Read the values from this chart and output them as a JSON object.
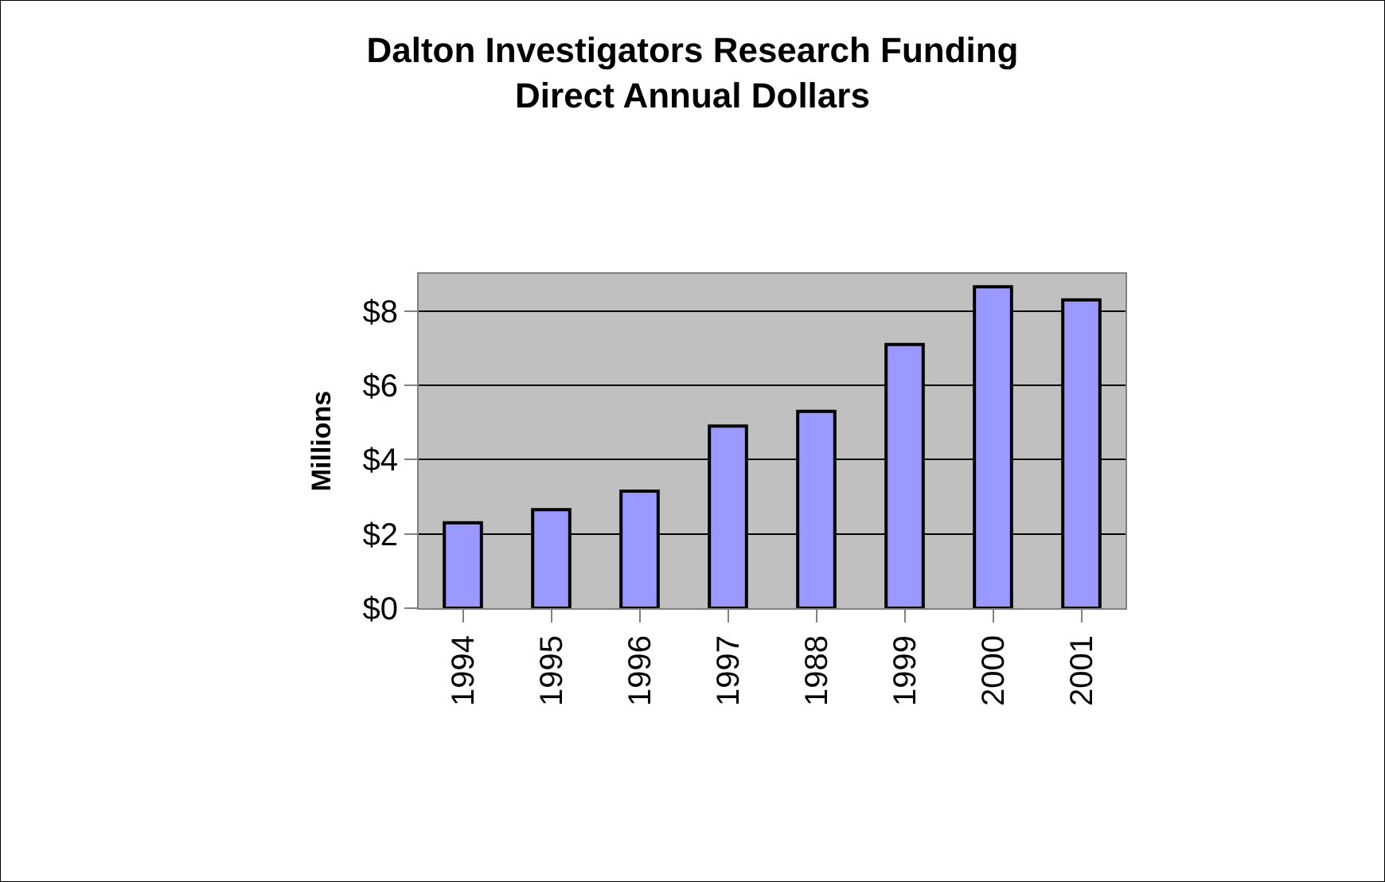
{
  "chart_data": {
    "type": "bar",
    "title": "Dalton Investigators Research Funding\nDirect Annual Dollars",
    "ylabel": "Millions",
    "categories": [
      "1994",
      "1995",
      "1996",
      "1997",
      "1988",
      "1999",
      "2000",
      "2001"
    ],
    "values": [
      2.3,
      2.65,
      3.15,
      4.9,
      5.3,
      7.1,
      8.65,
      8.3
    ],
    "color": "#9999ff",
    "ylim": [
      0,
      9
    ],
    "yticks": [
      {
        "value": 0,
        "label": "$0"
      },
      {
        "value": 2,
        "label": "$2"
      },
      {
        "value": 4,
        "label": "$4"
      },
      {
        "value": 6,
        "label": "$6"
      },
      {
        "value": 8,
        "label": "$8"
      }
    ],
    "grid": "y",
    "legend": false
  }
}
